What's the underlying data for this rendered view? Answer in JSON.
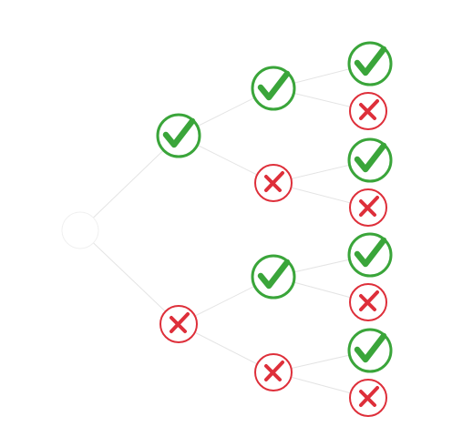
{
  "diagram": {
    "type": "outcome-tree",
    "colors": {
      "background": "#ffffff",
      "edge": "#e4e4e4",
      "root_outline": "#f0f0f0",
      "check": "#3aa53a",
      "check_ring": "#3aa53a",
      "cross": "#de2f3a",
      "cross_ring": "#de2f3a"
    },
    "root": {
      "icon": "empty-circle",
      "children": [
        {
          "outcome": "check",
          "icon": "check-mark-icon",
          "children": [
            {
              "outcome": "check",
              "icon": "check-mark-icon",
              "children": [
                {
                  "outcome": "check",
                  "icon": "check-mark-icon"
                },
                {
                  "outcome": "cross",
                  "icon": "cross-mark-icon"
                }
              ]
            },
            {
              "outcome": "cross",
              "icon": "cross-mark-icon",
              "children": [
                {
                  "outcome": "check",
                  "icon": "check-mark-icon"
                },
                {
                  "outcome": "cross",
                  "icon": "cross-mark-icon"
                }
              ]
            }
          ]
        },
        {
          "outcome": "cross",
          "icon": "cross-mark-icon",
          "children": [
            {
              "outcome": "check",
              "icon": "check-mark-icon",
              "children": [
                {
                  "outcome": "check",
                  "icon": "check-mark-icon"
                },
                {
                  "outcome": "cross",
                  "icon": "cross-mark-icon"
                }
              ]
            },
            {
              "outcome": "cross",
              "icon": "cross-mark-icon",
              "children": [
                {
                  "outcome": "check",
                  "icon": "check-mark-icon"
                },
                {
                  "outcome": "cross",
                  "icon": "cross-mark-icon"
                }
              ]
            }
          ]
        }
      ]
    }
  }
}
